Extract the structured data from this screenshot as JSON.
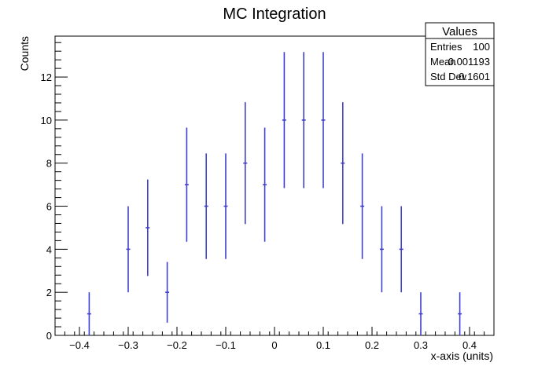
{
  "chart_data": {
    "type": "scatter",
    "title": "MC Integration",
    "xlabel": "x-axis (units)",
    "ylabel": "Counts",
    "xlim": [
      -0.45,
      0.45
    ],
    "ylim": [
      0,
      13.9
    ],
    "grid": false,
    "xticks": [
      -0.4,
      -0.3,
      -0.2,
      -0.1,
      0,
      0.1,
      0.2,
      0.3,
      0.4
    ],
    "xtick_labels": [
      "−0.4",
      "−0.3",
      "−0.2",
      "−0.1",
      "0",
      "0.1",
      "0.2",
      "0.3",
      "0.4"
    ],
    "yticks": [
      0,
      2,
      4,
      6,
      8,
      10,
      12
    ],
    "ytick_labels": [
      "0",
      "2",
      "4",
      "6",
      "8",
      "10",
      "12"
    ],
    "series": [
      {
        "color": "#4040cc",
        "points": [
          {
            "x": -0.38,
            "y": 1,
            "yerr_low": 1,
            "yerr_high": 1
          },
          {
            "x": -0.3,
            "y": 4,
            "yerr_low": 2,
            "yerr_high": 2
          },
          {
            "x": -0.26,
            "y": 5,
            "yerr_low": 2.24,
            "yerr_high": 2.24
          },
          {
            "x": -0.22,
            "y": 2,
            "yerr_low": 1.41,
            "yerr_high": 1.41
          },
          {
            "x": -0.18,
            "y": 7,
            "yerr_low": 2.65,
            "yerr_high": 2.65
          },
          {
            "x": -0.14,
            "y": 6,
            "yerr_low": 2.45,
            "yerr_high": 2.45
          },
          {
            "x": -0.1,
            "y": 6,
            "yerr_low": 2.45,
            "yerr_high": 2.45
          },
          {
            "x": -0.06,
            "y": 8,
            "yerr_low": 2.83,
            "yerr_high": 2.83
          },
          {
            "x": -0.02,
            "y": 7,
            "yerr_low": 2.65,
            "yerr_high": 2.65
          },
          {
            "x": 0.02,
            "y": 10,
            "yerr_low": 3.16,
            "yerr_high": 3.16
          },
          {
            "x": 0.06,
            "y": 10,
            "yerr_low": 3.16,
            "yerr_high": 3.16
          },
          {
            "x": 0.1,
            "y": 10,
            "yerr_low": 3.16,
            "yerr_high": 3.16
          },
          {
            "x": 0.14,
            "y": 8,
            "yerr_low": 2.83,
            "yerr_high": 2.83
          },
          {
            "x": 0.18,
            "y": 6,
            "yerr_low": 2.45,
            "yerr_high": 2.45
          },
          {
            "x": 0.22,
            "y": 4,
            "yerr_low": 2,
            "yerr_high": 2
          },
          {
            "x": 0.26,
            "y": 4,
            "yerr_low": 2,
            "yerr_high": 2
          },
          {
            "x": 0.3,
            "y": 1,
            "yerr_low": 1,
            "yerr_high": 1
          },
          {
            "x": 0.38,
            "y": 1,
            "yerr_low": 1,
            "yerr_high": 1
          }
        ]
      }
    ],
    "stats_box": {
      "title": "Values",
      "rows": [
        {
          "label": "Entries",
          "value": "100"
        },
        {
          "label": "Mean",
          "value": "0.001193"
        },
        {
          "label": "Std Dev",
          "value": "0.1601"
        }
      ]
    }
  }
}
